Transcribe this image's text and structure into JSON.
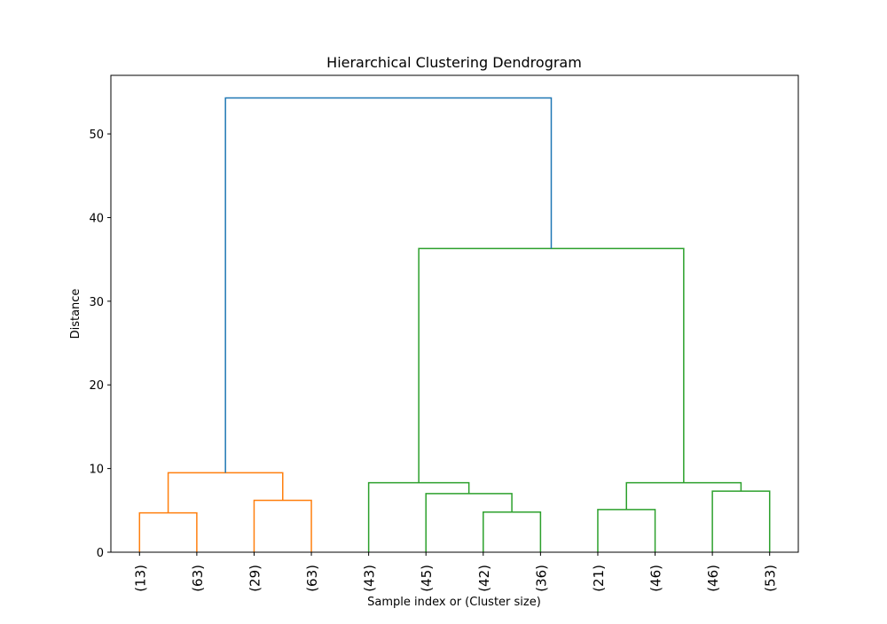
{
  "chart_data": {
    "type": "dendrogram",
    "title": "Hierarchical Clustering Dendrogram",
    "xlabel": "Sample index or (Cluster size)",
    "ylabel": "Distance",
    "categories": [
      "(13)",
      "(63)",
      "(29)",
      "(63)",
      "(43)",
      "(45)",
      "(42)",
      "(36)",
      "(21)",
      "(46)",
      "(46)",
      "(53)"
    ],
    "links": [
      {
        "children": [
          0,
          1
        ],
        "height": 4.7,
        "color": "#ff7f0e"
      },
      {
        "children": [
          2,
          3
        ],
        "height": 6.2,
        "color": "#ff7f0e"
      },
      {
        "children": [
          12,
          13
        ],
        "height": 9.5,
        "color": "#ff7f0e"
      },
      {
        "children": [
          6,
          7
        ],
        "height": 4.8,
        "color": "#2ca02c"
      },
      {
        "children": [
          5,
          15
        ],
        "height": 7.0,
        "color": "#2ca02c"
      },
      {
        "children": [
          4,
          16
        ],
        "height": 8.3,
        "color": "#2ca02c"
      },
      {
        "children": [
          8,
          9
        ],
        "height": 5.1,
        "color": "#2ca02c"
      },
      {
        "children": [
          10,
          11
        ],
        "height": 7.3,
        "color": "#2ca02c"
      },
      {
        "children": [
          18,
          19
        ],
        "height": 8.3,
        "color": "#2ca02c"
      },
      {
        "children": [
          17,
          20
        ],
        "height": 36.3,
        "color": "#2ca02c"
      },
      {
        "children": [
          14,
          21
        ],
        "height": 54.3,
        "color": "#1f77b4"
      }
    ],
    "ylim": [
      0,
      57
    ],
    "yticks": [
      0,
      10,
      20,
      30,
      40,
      50
    ]
  }
}
